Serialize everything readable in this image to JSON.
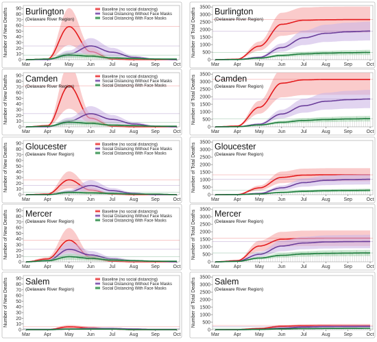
{
  "figure": {
    "region_note": "(Delaware River Region)",
    "legend_labels": [
      "Baseline (no social distancing)",
      "Social Distancing Without Face Masks",
      "Social Distancing With Face Masks"
    ],
    "colors": {
      "baseline": "#e41a1c",
      "no_masks": "#6a3d9a",
      "masks": "#1a7a3a",
      "baseline_band": "#f8b5b5",
      "no_masks_band": "#cdb8e6",
      "masks_band": "#a9d7b3"
    },
    "months": [
      "Mar",
      "Apr",
      "May",
      "Jun",
      "Jul",
      "Aug",
      "Sep",
      "Oct"
    ],
    "left_ylabel": "Number of New Deaths",
    "right_ylabel": "Number of Total Deaths"
  },
  "chart_data": [
    {
      "type": "line",
      "title": "Burlington",
      "subtitle": "(Delaware River Region)",
      "ylabel": "Number of New Deaths",
      "ylim": [
        0,
        95
      ],
      "yticks": [
        0,
        10,
        20,
        30,
        40,
        50,
        60,
        70,
        80,
        90
      ],
      "x": [
        "Mar",
        "Apr",
        "May",
        "Jun",
        "Jul",
        "Aug",
        "Sep",
        "Oct"
      ],
      "series": [
        {
          "name": "Baseline (no social distancing)",
          "values": [
            0,
            1,
            58,
            14,
            1,
            0,
            0,
            0
          ]
        },
        {
          "name": "Social Distancing Without Face Masks",
          "values": [
            0,
            0,
            10,
            24,
            13,
            4,
            1,
            0
          ]
        },
        {
          "name": "Social Distancing With Face Masks",
          "values": [
            0,
            1,
            8,
            6,
            3,
            2,
            1,
            1
          ]
        }
      ]
    },
    {
      "type": "line",
      "title": "Burlington",
      "subtitle": "(Delaware River Region)",
      "ylabel": "Number of Total Deaths",
      "ylim": [
        0,
        3600
      ],
      "yticks": [
        0,
        500,
        1000,
        1500,
        2000,
        2500,
        3000,
        3500
      ],
      "x": [
        "Mar",
        "Apr",
        "May",
        "Jun",
        "Jul",
        "Aug",
        "Sep",
        "Oct"
      ],
      "series": [
        {
          "name": "Baseline (no social distancing)",
          "values": [
            0,
            30,
            900,
            2350,
            2620,
            2650,
            2660,
            2660
          ]
        },
        {
          "name": "Social Distancing Without Face Masks",
          "values": [
            0,
            10,
            150,
            800,
            1450,
            1750,
            1850,
            1900
          ]
        },
        {
          "name": "Social Distancing With Face Masks",
          "values": [
            0,
            10,
            100,
            280,
            380,
            430,
            460,
            480
          ]
        }
      ]
    },
    {
      "type": "line",
      "title": "Camden",
      "subtitle": "(Delaware River Region)",
      "ylabel": "Number of New Deaths",
      "ylim": [
        0,
        95
      ],
      "yticks": [
        0,
        10,
        20,
        30,
        40,
        50,
        60,
        70,
        80,
        90
      ],
      "x": [
        "Mar",
        "Apr",
        "May",
        "Jun",
        "Jul",
        "Aug",
        "Sep",
        "Oct"
      ],
      "series": [
        {
          "name": "Baseline (no social distancing)",
          "values": [
            0,
            2,
            72,
            15,
            1,
            0,
            0,
            0
          ]
        },
        {
          "name": "Social Distancing Without Face Masks",
          "values": [
            0,
            0,
            10,
            23,
            13,
            5,
            1,
            0
          ]
        },
        {
          "name": "Social Distancing With Face Masks",
          "values": [
            0,
            1,
            8,
            6,
            3,
            2,
            1,
            1
          ]
        }
      ]
    },
    {
      "type": "line",
      "title": "Camden",
      "subtitle": "(Delaware River Region)",
      "ylabel": "Number of Total Deaths",
      "ylim": [
        0,
        3600
      ],
      "yticks": [
        0,
        500,
        1000,
        1500,
        2000,
        2500,
        3000,
        3500
      ],
      "x": [
        "Mar",
        "Apr",
        "May",
        "Jun",
        "Jul",
        "Aug",
        "Sep",
        "Oct"
      ],
      "series": [
        {
          "name": "Baseline (no social distancing)",
          "values": [
            0,
            50,
            1300,
            2900,
            3120,
            3150,
            3150,
            3150
          ]
        },
        {
          "name": "Social Distancing Without Face Masks",
          "values": [
            0,
            10,
            170,
            850,
            1400,
            1700,
            1800,
            1850
          ]
        },
        {
          "name": "Social Distancing With Face Masks",
          "values": [
            0,
            10,
            120,
            300,
            420,
            480,
            520,
            540
          ]
        }
      ]
    },
    {
      "type": "line",
      "title": "Gloucester",
      "subtitle": "(Delaware River Region)",
      "ylabel": "Number of New Deaths",
      "ylim": [
        0,
        95
      ],
      "yticks": [
        0,
        10,
        20,
        30,
        40,
        50,
        60,
        70,
        80,
        90
      ],
      "x": [
        "Mar",
        "Apr",
        "May",
        "Jun",
        "Jul",
        "Aug",
        "Sep",
        "Oct"
      ],
      "series": [
        {
          "name": "Baseline (no social distancing)",
          "values": [
            0,
            1,
            26,
            8,
            1,
            0,
            0,
            0
          ]
        },
        {
          "name": "Social Distancing Without Face Masks",
          "values": [
            0,
            0,
            5,
            16,
            7,
            2,
            0,
            0
          ]
        },
        {
          "name": "Social Distancing With Face Masks",
          "values": [
            0,
            0,
            4,
            3,
            2,
            1,
            1,
            0
          ]
        }
      ]
    },
    {
      "type": "line",
      "title": "Gloucester",
      "subtitle": "(Delaware River Region)",
      "ylabel": "Number of Total Deaths",
      "ylim": [
        0,
        3600
      ],
      "yticks": [
        0,
        500,
        1000,
        1500,
        2000,
        2500,
        3000,
        3500
      ],
      "x": [
        "Mar",
        "Apr",
        "May",
        "Jun",
        "Jul",
        "Aug",
        "Sep",
        "Oct"
      ],
      "series": [
        {
          "name": "Baseline (no social distancing)",
          "values": [
            0,
            10,
            450,
            1150,
            1300,
            1320,
            1320,
            1320
          ]
        },
        {
          "name": "Social Distancing Without Face Masks",
          "values": [
            0,
            5,
            80,
            450,
            800,
            950,
            1000,
            1020
          ]
        },
        {
          "name": "Social Distancing With Face Masks",
          "values": [
            0,
            5,
            50,
            150,
            220,
            260,
            280,
            290
          ]
        }
      ]
    },
    {
      "type": "line",
      "title": "Mercer",
      "subtitle": "(Delaware River Region)",
      "ylabel": "Number of New Deaths",
      "ylim": [
        0,
        95
      ],
      "yticks": [
        0,
        10,
        20,
        30,
        40,
        50,
        60,
        70,
        80,
        90
      ],
      "x": [
        "Mar",
        "Apr",
        "May",
        "Jun",
        "Jul",
        "Aug",
        "Sep",
        "Oct"
      ],
      "series": [
        {
          "name": "Baseline (no social distancing)",
          "values": [
            0,
            5,
            38,
            8,
            1,
            0,
            0,
            0
          ]
        },
        {
          "name": "Social Distancing Without Face Masks",
          "values": [
            0,
            2,
            22,
            12,
            5,
            2,
            1,
            0
          ]
        },
        {
          "name": "Social Distancing With Face Masks",
          "values": [
            0,
            2,
            9,
            6,
            3,
            2,
            1,
            1
          ]
        }
      ]
    },
    {
      "type": "line",
      "title": "Mercer",
      "subtitle": "(Delaware River Region)",
      "ylabel": "Number of Total Deaths",
      "ylim": [
        0,
        3600
      ],
      "yticks": [
        0,
        500,
        1000,
        1500,
        2000,
        2500,
        3000,
        3500
      ],
      "x": [
        "Mar",
        "Apr",
        "May",
        "Jun",
        "Jul",
        "Aug",
        "Sep",
        "Oct"
      ],
      "series": [
        {
          "name": "Baseline (no social distancing)",
          "values": [
            0,
            80,
            1050,
            1500,
            1560,
            1570,
            1570,
            1570
          ]
        },
        {
          "name": "Social Distancing Without Face Masks",
          "values": [
            0,
            40,
            500,
            1050,
            1250,
            1320,
            1340,
            1350
          ]
        },
        {
          "name": "Social Distancing With Face Masks",
          "values": [
            0,
            30,
            250,
            430,
            520,
            560,
            580,
            590
          ]
        }
      ]
    },
    {
      "type": "line",
      "title": "Salem",
      "subtitle": "(Delaware River Region)",
      "ylabel": "Number of New Deaths",
      "ylim": [
        0,
        95
      ],
      "yticks": [
        0,
        10,
        20,
        30,
        40,
        50,
        60,
        70,
        80,
        90
      ],
      "x": [
        "Mar",
        "Apr",
        "May",
        "Jun",
        "Jul",
        "Aug",
        "Sep",
        "Oct"
      ],
      "series": [
        {
          "name": "Baseline (no social distancing)",
          "values": [
            0,
            0,
            5,
            3,
            1,
            0,
            0,
            0
          ]
        },
        {
          "name": "Social Distancing Without Face Masks",
          "values": [
            0,
            0,
            1,
            2,
            2,
            1,
            0,
            0
          ]
        },
        {
          "name": "Social Distancing With Face Masks",
          "values": [
            0,
            0,
            1,
            1,
            1,
            0,
            0,
            0
          ]
        }
      ]
    },
    {
      "type": "line",
      "title": "Salem",
      "subtitle": "(Delaware River Region)",
      "ylabel": "Number of Total Deaths",
      "ylim": [
        0,
        3600
      ],
      "yticks": [
        0,
        500,
        1000,
        1500,
        2000,
        2500,
        3000,
        3500
      ],
      "x": [
        "Mar",
        "Apr",
        "May",
        "Jun",
        "Jul",
        "Aug",
        "Sep",
        "Oct"
      ],
      "series": [
        {
          "name": "Baseline (no social distancing)",
          "values": [
            0,
            5,
            80,
            220,
            260,
            270,
            275,
            275
          ]
        },
        {
          "name": "Social Distancing Without Face Masks",
          "values": [
            0,
            2,
            20,
            100,
            170,
            200,
            210,
            215
          ]
        },
        {
          "name": "Social Distancing With Face Masks",
          "values": [
            0,
            2,
            15,
            50,
            70,
            80,
            85,
            90
          ]
        }
      ]
    }
  ]
}
